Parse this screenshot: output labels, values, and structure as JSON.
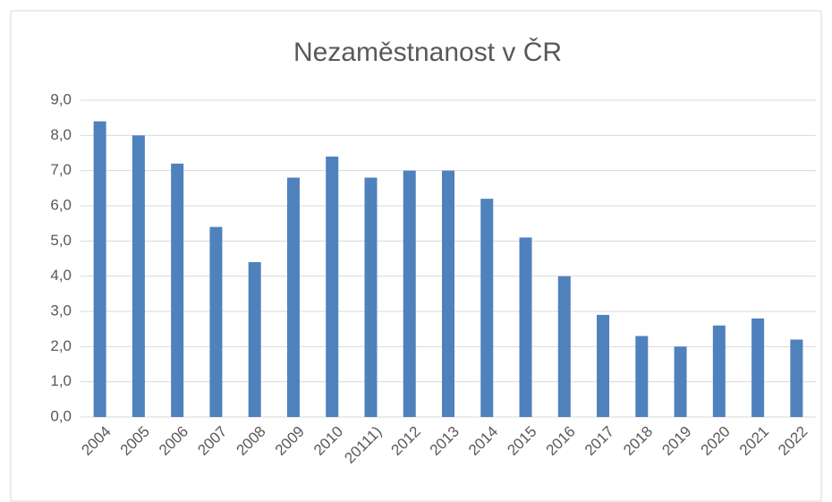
{
  "chart_data": {
    "type": "bar",
    "title": "Nezaměstnanost  v ČR",
    "categories": [
      "2004",
      "2005",
      "2006",
      "2007",
      "2008",
      "2009",
      "2010",
      "20111)",
      "2012",
      "2013",
      "2014",
      "2015",
      "2016",
      "2017",
      "2018",
      "2019",
      "2020",
      "2021",
      "2022"
    ],
    "values": [
      8.4,
      8.0,
      7.2,
      5.4,
      4.4,
      6.8,
      7.4,
      6.8,
      7.0,
      7.0,
      6.2,
      5.1,
      4.0,
      2.9,
      2.3,
      2.0,
      2.6,
      2.8,
      2.2
    ],
    "color": "#4f81bd",
    "ylim": [
      0,
      9
    ],
    "yticks": [
      {
        "value": 0,
        "label": "0,0"
      },
      {
        "value": 1,
        "label": "1,0"
      },
      {
        "value": 2,
        "label": "2,0"
      },
      {
        "value": 3,
        "label": "3,0"
      },
      {
        "value": 4,
        "label": "4,0"
      },
      {
        "value": 5,
        "label": "5,0"
      },
      {
        "value": 6,
        "label": "6,0"
      },
      {
        "value": 7,
        "label": "7,0"
      },
      {
        "value": 8,
        "label": "8,0"
      },
      {
        "value": 9,
        "label": "9,0"
      }
    ],
    "grid": true
  }
}
